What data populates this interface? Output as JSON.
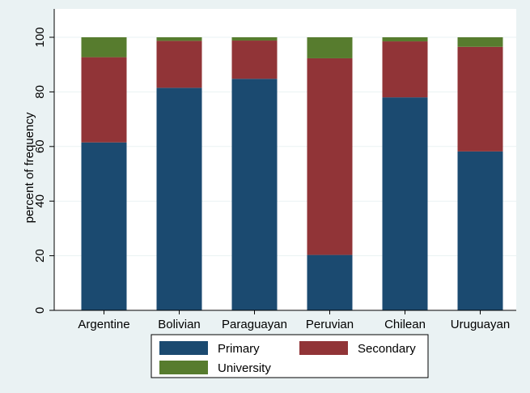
{
  "chart_data": {
    "type": "bar",
    "stacked": true,
    "categories": [
      "Argentine",
      "Bolivian",
      "Paraguayan",
      "Peruvian",
      "Chilean",
      "Uruguayan"
    ],
    "series": [
      {
        "name": "Primary",
        "color": "#1b4a70",
        "values": [
          61.5,
          81.5,
          84.8,
          20.3,
          78.0,
          58.2
        ]
      },
      {
        "name": "Secondary",
        "color": "#913437",
        "values": [
          31.2,
          17.2,
          14.0,
          72.0,
          20.5,
          38.3
        ]
      },
      {
        "name": "University",
        "color": "#577c2e",
        "values": [
          7.3,
          1.3,
          1.2,
          7.7,
          1.5,
          3.5
        ]
      }
    ],
    "ylabel": "percent of frequency",
    "ylim": [
      0,
      100
    ],
    "yticks": [
      "0",
      "20",
      "40",
      "60",
      "80",
      "100"
    ],
    "grid": true,
    "legend": "bottom"
  }
}
